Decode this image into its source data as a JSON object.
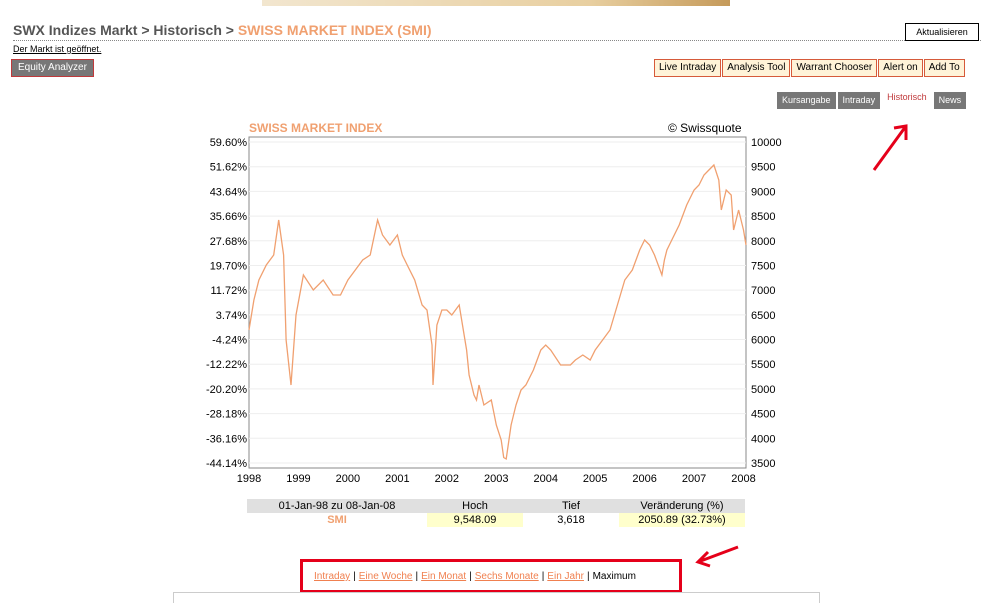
{
  "header": {
    "breadcrumb_prefix": "SWX Indizes Markt > Historisch > ",
    "breadcrumb_current": "SWISS MARKET INDEX (SMI)",
    "refresh_label": "Aktualisieren",
    "market_status": "Der Markt ist geöffnet."
  },
  "equity_analyzer_label": "Equity Analyzer",
  "toolbar": [
    "Live Intraday",
    "Analysis Tool",
    "Warrant Chooser",
    "Alert on",
    "Add To"
  ],
  "tabs": [
    "Kursangabe",
    "Intraday",
    "Historisch",
    "News"
  ],
  "active_tab": "Historisch",
  "colors": {
    "accent": "#f0a070",
    "highlight": "#e5001a",
    "line": "#f0a070"
  },
  "chart_data": {
    "type": "line",
    "title": "SWISS MARKET INDEX",
    "source": "© Swissquote",
    "left_ticks": [
      "59.60%",
      "51.62%",
      "43.64%",
      "35.66%",
      "27.68%",
      "19.70%",
      "11.72%",
      "3.74%",
      "-4.24%",
      "-12.22%",
      "-20.20%",
      "-28.18%",
      "-36.16%",
      "-44.14%"
    ],
    "right_ticks": [
      "10000",
      "9500",
      "9000",
      "8500",
      "8000",
      "7500",
      "7000",
      "6500",
      "6000",
      "5500",
      "5000",
      "4500",
      "4000",
      "3500"
    ],
    "x_ticks": [
      "1998",
      "1999",
      "2000",
      "2001",
      "2002",
      "2003",
      "2004",
      "2005",
      "2006",
      "2007",
      "2008"
    ],
    "ylim": [
      3500,
      10000
    ],
    "xlim": [
      1998.0,
      2008.05
    ],
    "x": [
      1998.0,
      1998.1,
      1998.2,
      1998.35,
      1998.5,
      1998.6,
      1998.7,
      1998.75,
      1998.85,
      1998.95,
      1999.1,
      1999.3,
      1999.5,
      1999.7,
      1999.85,
      2000.0,
      2000.15,
      2000.3,
      2000.45,
      2000.6,
      2000.7,
      2000.85,
      2001.0,
      2001.1,
      2001.2,
      2001.35,
      2001.5,
      2001.6,
      2001.7,
      2001.72,
      2001.8,
      2001.9,
      2002.0,
      2002.1,
      2002.25,
      2002.4,
      2002.45,
      2002.55,
      2002.6,
      2002.65,
      2002.75,
      2002.9,
      2003.0,
      2003.1,
      2003.15,
      2003.2,
      2003.3,
      2003.4,
      2003.5,
      2003.6,
      2003.75,
      2003.9,
      2004.0,
      2004.1,
      2004.3,
      2004.5,
      2004.6,
      2004.75,
      2004.9,
      2005.0,
      2005.15,
      2005.3,
      2005.45,
      2005.6,
      2005.75,
      2005.9,
      2006.0,
      2006.1,
      2006.2,
      2006.35,
      2006.4,
      2006.45,
      2006.55,
      2006.7,
      2006.85,
      2007.0,
      2007.1,
      2007.2,
      2007.3,
      2007.4,
      2007.5,
      2007.55,
      2007.65,
      2007.75,
      2007.8,
      2007.9,
      2008.0,
      2008.05
    ],
    "y": [
      6200,
      6800,
      7200,
      7500,
      7700,
      8400,
      7700,
      6000,
      5100,
      6500,
      7300,
      7000,
      7200,
      6900,
      6900,
      7200,
      7400,
      7600,
      7700,
      8400,
      8100,
      7900,
      8100,
      7700,
      7500,
      7200,
      6700,
      6600,
      5900,
      5100,
      6300,
      6600,
      6600,
      6500,
      6700,
      5800,
      5300,
      4900,
      4800,
      5100,
      4700,
      4800,
      4300,
      4000,
      3650,
      3620,
      4300,
      4700,
      5000,
      5100,
      5400,
      5800,
      5900,
      5800,
      5500,
      5500,
      5600,
      5700,
      5600,
      5800,
      6000,
      6200,
      6700,
      7200,
      7400,
      7800,
      8000,
      7900,
      7700,
      7300,
      7600,
      7800,
      8000,
      8300,
      8700,
      9000,
      9100,
      9300,
      9400,
      9500,
      9200,
      8600,
      9000,
      8900,
      8200,
      8600,
      8200,
      7900
    ]
  },
  "summary": {
    "range_label": "01-Jan-98 zu 08-Jan-08",
    "col_high": "Hoch",
    "col_low": "Tief",
    "col_change": "Veränderung (%)",
    "name": "SMI",
    "high": "9,548.09",
    "low": "3,618",
    "change": "2050.89 (32.73%)"
  },
  "periods": [
    "Intraday",
    "Eine Woche",
    "Ein Monat",
    "Sechs Monate",
    "Ein Jahr",
    "Maximum"
  ]
}
